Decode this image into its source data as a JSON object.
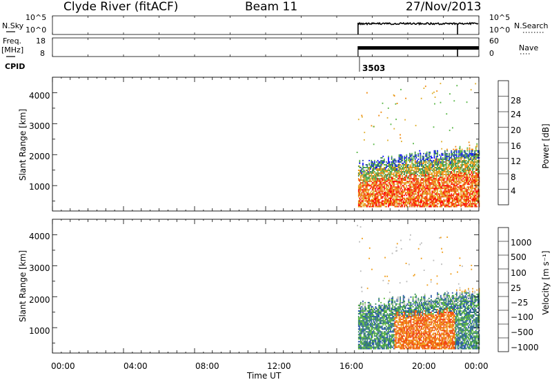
{
  "header": {
    "station": "Clyde River (fitACF)",
    "beam": "Beam 11",
    "date": "27/Nov/2013"
  },
  "top_panels": {
    "nsky_label": "N.Sky",
    "nsky_ticks": [
      "10^5",
      "10^0"
    ],
    "nsearch_ticks": [
      "10^5",
      "10^0"
    ],
    "nsearch_label": "N.Search",
    "freq_label_1": "Freq.",
    "freq_label_2": "[MHz]",
    "freq_ticks": [
      "18",
      "8"
    ],
    "nave_ticks": [
      "60",
      "0"
    ],
    "nave_label": "Nave",
    "cpid_label": "CPID",
    "cpid_value": "3503"
  },
  "colors": {
    "power": [
      "#1010ff",
      "#2a50a8",
      "#3f8a52",
      "#5cb84a",
      "#e0b030",
      "#f08a10",
      "#f04c10",
      "#ff0000"
    ],
    "velocity": [
      "#ff0000",
      "#f04010",
      "#f07010",
      "#f0a020",
      "#bdbdbd",
      "#5cb840",
      "#3a8a62",
      "#2a5aa8",
      "#1a30d0"
    ]
  },
  "chart_data": [
    {
      "type": "heatmap",
      "name": "power-panel",
      "ylabel": "Slant Range [km]",
      "x_range_hours": [
        0,
        24
      ],
      "ylim": [
        180,
        4500
      ],
      "yticks": [
        "4000",
        "3000",
        "2000",
        "1000"
      ],
      "ytick_values": [
        4000,
        3000,
        2000,
        1000
      ],
      "colorbar": {
        "label": "Power [dB]",
        "ticks": [
          "28",
          "24",
          "20",
          "16",
          "12",
          "8",
          "4"
        ],
        "range": [
          0,
          32
        ]
      },
      "data_coverage_hours": [
        17.2,
        24
      ],
      "echo_band_km": [
        300,
        2000
      ]
    },
    {
      "type": "heatmap",
      "name": "velocity-panel",
      "ylabel": "Slant Range [km]",
      "x_range_hours": [
        0,
        24
      ],
      "ylim": [
        180,
        4500
      ],
      "yticks": [
        "4000",
        "3000",
        "2000",
        "1000"
      ],
      "ytick_values": [
        4000,
        3000,
        2000,
        1000
      ],
      "xticks": [
        "00:00",
        "04:00",
        "08:00",
        "12:00",
        "16:00",
        "20:00",
        "00:00"
      ],
      "xlabel": "Time UT",
      "colorbar": {
        "label": "Velocity [m s⁻¹]",
        "ticks": [
          "1000",
          "500",
          "100",
          "25",
          "−25",
          "−100",
          "−500",
          "−1000"
        ]
      },
      "data_coverage_hours": [
        17.2,
        24
      ],
      "echo_band_km": [
        300,
        1900
      ]
    }
  ]
}
